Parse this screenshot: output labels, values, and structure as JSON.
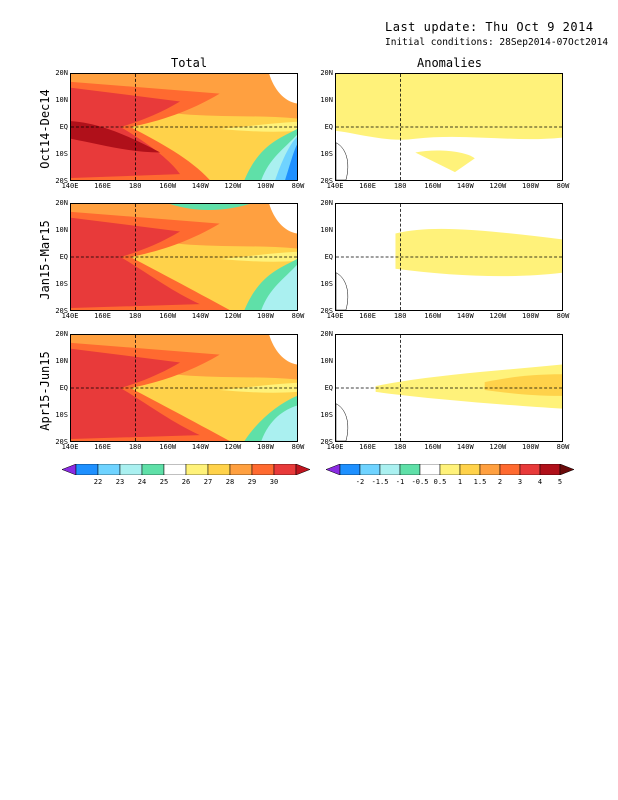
{
  "header": {
    "last_update": "Last update: Thu Oct  9 2014",
    "initial_conditions": "Initial conditions: 28Sep2014-07Oct2014"
  },
  "columns": {
    "total": "Total",
    "anomalies": "Anomalies"
  },
  "rows": [
    "Oct14-Dec14",
    "Jan15-Mar15",
    "Apr15-Jun15"
  ],
  "lat_labels": [
    "20N",
    "10N",
    "EQ",
    "10S",
    "20S"
  ],
  "lon_labels": [
    "140E",
    "160E",
    "180",
    "160W",
    "140W",
    "120W",
    "100W",
    "80W"
  ],
  "total_colorbar": {
    "labels": [
      "22",
      "23",
      "24",
      "25",
      "26",
      "27",
      "28",
      "29",
      "30"
    ],
    "colors": [
      "#8a2be2",
      "#1e90ff",
      "#6fd3ff",
      "#aaf0f0",
      "#5fe0a8",
      "#ffffff",
      "#fff27a",
      "#ffd24a",
      "#ffa040",
      "#ff6a30",
      "#e83a3a",
      "#c0141e"
    ]
  },
  "anom_colorbar": {
    "labels": [
      "-2",
      "-1.5",
      "-1",
      "-0.5",
      "0.5",
      "1",
      "1.5",
      "2",
      "3",
      "4",
      "5"
    ],
    "colors": [
      "#8a2be2",
      "#1e90ff",
      "#6fd3ff",
      "#aaf0f0",
      "#5fe0a8",
      "#ffffff",
      "#fff27a",
      "#ffd24a",
      "#ffa040",
      "#ff6a30",
      "#e83a3a",
      "#b0101a",
      "#6a0a0a"
    ]
  },
  "map_colors": {
    "total_warm": [
      "#e83a3a",
      "#ff6a30",
      "#ffa040",
      "#ffd24a",
      "#fff27a"
    ],
    "total_core": "#b0101a",
    "total_cold": [
      "#5fe0a8",
      "#aaf0f0",
      "#6fd3ff",
      "#1e90ff",
      "#4a3adf"
    ],
    "anom_pos": [
      "#fff27a",
      "#ffd24a"
    ],
    "land": "#ffffff"
  }
}
